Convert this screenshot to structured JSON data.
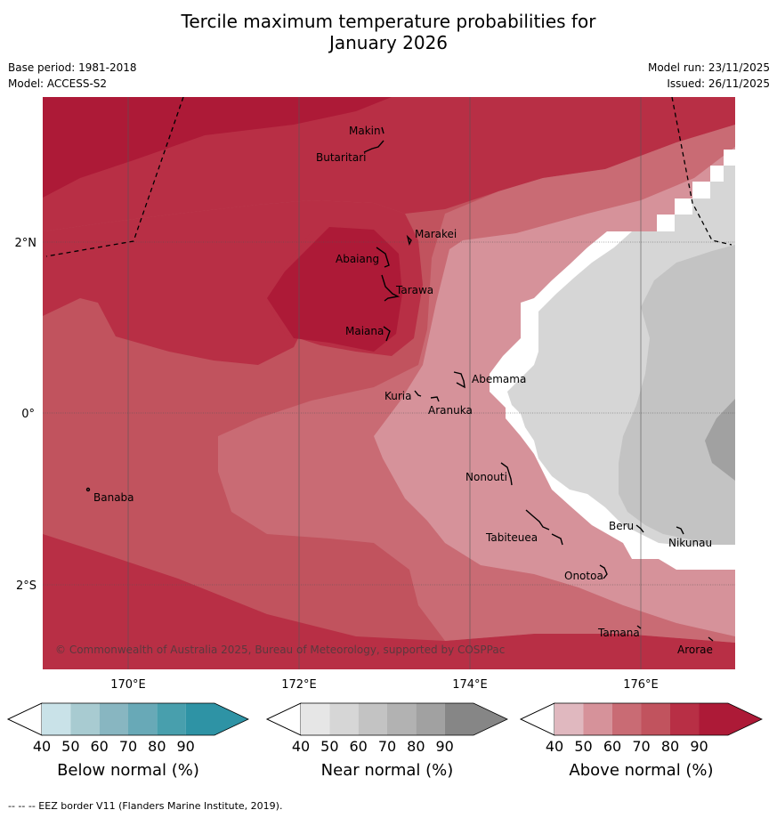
{
  "title_line1": "Tercile maximum temperature probabilities for",
  "title_line2": "January 2026",
  "base_period": "Base period: 1981-2018",
  "model": "Model: ACCESS-S2",
  "model_run": "Model run: 23/11/2025",
  "issued": "Issued: 26/11/2025",
  "copyright": "© Commonwealth of Australia 2025, Bureau of Meteorology, supported by COSPPac",
  "footer": "-- -- -- EEZ border V11 (Flanders Marine Institute, 2019).",
  "axes": {
    "lon_labels": [
      "170°E",
      "172°E",
      "174°E",
      "176°E"
    ],
    "lat_labels": [
      "2°N",
      "0°",
      "2°S"
    ]
  },
  "places": [
    "Makin",
    "Butaritari",
    "Marakei",
    "Abaiang",
    "Tarawa",
    "Maiana",
    "Abemama",
    "Kuria",
    "Aranuka",
    "Banaba",
    "Nonouti",
    "Tabiteuea",
    "Beru",
    "Nikunau",
    "Onotoa",
    "Tamana",
    "Arorae"
  ],
  "colorbars": [
    {
      "name": "below",
      "title": "Below normal (%)",
      "ticks": [
        "40",
        "50",
        "60",
        "70",
        "80",
        "90"
      ],
      "colors": [
        "#c9e2e8",
        "#a8cbd1",
        "#88b6c1",
        "#68a9b7",
        "#489fad",
        "#2e93a5"
      ]
    },
    {
      "name": "near",
      "title": "Near normal (%)",
      "ticks": [
        "40",
        "50",
        "60",
        "70",
        "80",
        "90"
      ],
      "colors": [
        "#e6e6e6",
        "#d6d6d6",
        "#c3c3c3",
        "#b2b2b2",
        "#a1a1a1",
        "#868686"
      ]
    },
    {
      "name": "above",
      "title": "Above normal (%)",
      "ticks": [
        "40",
        "50",
        "60",
        "70",
        "80",
        "90"
      ],
      "colors": [
        "#e0b8bf",
        "#d6929a",
        "#c96b74",
        "#c1535e",
        "#b82f45",
        "#ad1a37"
      ]
    }
  ]
}
